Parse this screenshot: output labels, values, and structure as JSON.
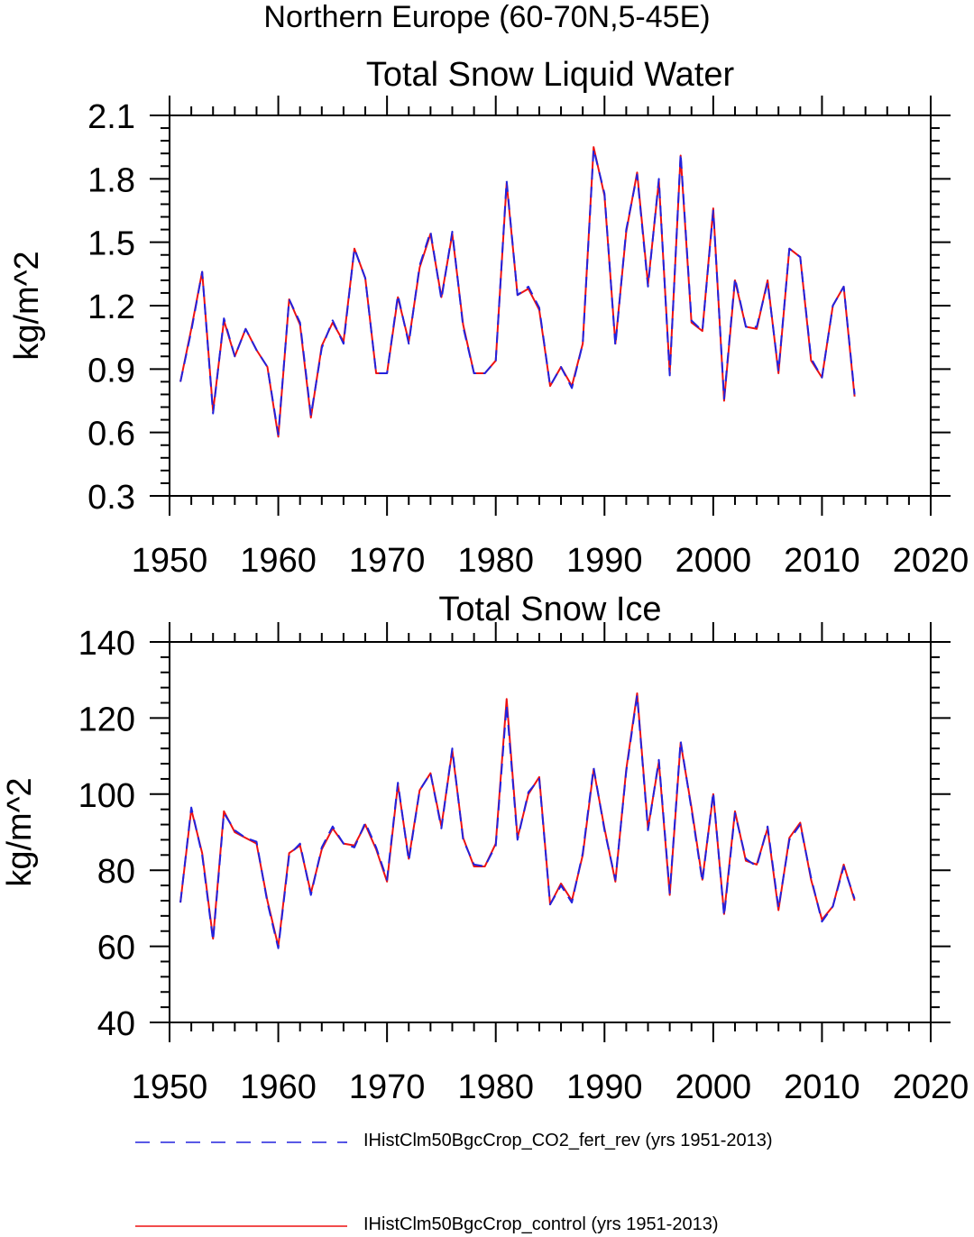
{
  "figure": {
    "suptitle": "Northern Europe (60-70N,5-45E)"
  },
  "colors": {
    "co2_fert_rev": "#2222dd",
    "control": "#ee1111",
    "axis": "#000000"
  },
  "legend": [
    {
      "label": "IHistClm50BgcCrop_CO2_fert_rev (yrs 1951-2013)",
      "color": "#2222dd",
      "style": "dashed"
    },
    {
      "label": "IHistClm50BgcCrop_control (yrs 1951-2013)",
      "color": "#ee1111",
      "style": "solid"
    }
  ],
  "chart_data": [
    {
      "type": "line",
      "title": "Total Snow Liquid Water",
      "xlabel": "",
      "ylabel": "kg/m^2",
      "xlim": [
        1950,
        2020
      ],
      "ylim": [
        0.3,
        2.1
      ],
      "xticks": [
        1950,
        1960,
        1970,
        1980,
        1990,
        2000,
        2010,
        2020
      ],
      "yticks": [
        "0.3",
        "0.6",
        "0.9",
        "1.2",
        "1.5",
        "1.8",
        "2.1"
      ],
      "x": [
        1951,
        1952,
        1953,
        1954,
        1955,
        1956,
        1957,
        1958,
        1959,
        1960,
        1961,
        1962,
        1963,
        1964,
        1965,
        1966,
        1967,
        1968,
        1969,
        1970,
        1971,
        1972,
        1973,
        1974,
        1975,
        1976,
        1977,
        1978,
        1979,
        1980,
        1981,
        1982,
        1983,
        1984,
        1985,
        1986,
        1987,
        1988,
        1989,
        1990,
        1991,
        1992,
        1993,
        1994,
        1995,
        1996,
        1997,
        1998,
        1999,
        2000,
        2001,
        2002,
        2003,
        2004,
        2005,
        2006,
        2007,
        2008,
        2009,
        2010,
        2011,
        2012,
        2013
      ],
      "series": [
        {
          "name": "IHistClm50BgcCrop_CO2_fert_rev (yrs 1951-2013)",
          "values": [
            0.84,
            1.08,
            1.36,
            0.69,
            1.14,
            0.96,
            1.09,
            0.99,
            0.91,
            0.59,
            1.23,
            1.12,
            0.68,
            1.0,
            1.13,
            1.02,
            1.47,
            1.33,
            0.88,
            0.88,
            1.25,
            1.02,
            1.39,
            1.55,
            1.23,
            1.55,
            1.1,
            0.88,
            0.88,
            0.94,
            1.79,
            1.25,
            1.29,
            1.19,
            0.82,
            0.91,
            0.81,
            1.02,
            1.94,
            1.73,
            1.01,
            1.56,
            1.82,
            1.29,
            1.8,
            0.87,
            1.92,
            1.13,
            1.08,
            1.65,
            0.76,
            1.33,
            1.1,
            1.1,
            1.31,
            0.89,
            1.47,
            1.43,
            0.95,
            0.86,
            1.2,
            1.29,
            0.78
          ]
        },
        {
          "name": "IHistClm50BgcCrop_control (yrs 1951-2013)",
          "values": [
            0.84,
            1.09,
            1.36,
            0.7,
            1.13,
            0.96,
            1.09,
            0.99,
            0.91,
            0.58,
            1.23,
            1.11,
            0.67,
            1.01,
            1.12,
            1.03,
            1.47,
            1.33,
            0.88,
            0.88,
            1.24,
            1.03,
            1.38,
            1.54,
            1.24,
            1.54,
            1.11,
            0.88,
            0.88,
            0.94,
            1.78,
            1.25,
            1.28,
            1.18,
            0.82,
            0.91,
            0.82,
            1.02,
            1.95,
            1.72,
            1.02,
            1.55,
            1.83,
            1.3,
            1.79,
            0.88,
            1.91,
            1.12,
            1.08,
            1.66,
            0.75,
            1.32,
            1.1,
            1.09,
            1.32,
            0.88,
            1.47,
            1.43,
            0.94,
            0.86,
            1.2,
            1.29,
            0.77
          ]
        }
      ]
    },
    {
      "type": "line",
      "title": "Total Snow Ice",
      "xlabel": "",
      "ylabel": "kg/m^2",
      "xlim": [
        1950,
        2020
      ],
      "ylim": [
        40,
        140
      ],
      "xticks": [
        1950,
        1960,
        1970,
        1980,
        1990,
        2000,
        2010,
        2020
      ],
      "yticks": [
        "40",
        "60",
        "80",
        "100",
        "120",
        "140"
      ],
      "x": [
        1951,
        1952,
        1953,
        1954,
        1955,
        1956,
        1957,
        1958,
        1959,
        1960,
        1961,
        1962,
        1963,
        1964,
        1965,
        1966,
        1967,
        1968,
        1969,
        1970,
        1971,
        1972,
        1973,
        1974,
        1975,
        1976,
        1977,
        1978,
        1979,
        1980,
        1981,
        1982,
        1983,
        1984,
        1985,
        1986,
        1987,
        1988,
        1989,
        1990,
        1991,
        1992,
        1993,
        1994,
        1995,
        1996,
        1997,
        1998,
        1999,
        2000,
        2001,
        2002,
        2003,
        2004,
        2005,
        2006,
        2007,
        2008,
        2009,
        2010,
        2011,
        2012,
        2013
      ],
      "series": [
        {
          "name": "IHistClm50BgcCrop_CO2_fert_rev (yrs 1951-2013)",
          "values": [
            71.5,
            96.5,
            84.0,
            61.5,
            95.0,
            90.5,
            88.5,
            87.5,
            71.5,
            59.5,
            84.0,
            87.0,
            73.5,
            86.0,
            91.5,
            87.0,
            86.0,
            92.5,
            86.0,
            77.5,
            103.0,
            82.5,
            101.0,
            105.5,
            91.0,
            112.0,
            88.0,
            81.5,
            81.0,
            86.5,
            123.5,
            88.0,
            100.5,
            104.0,
            71.0,
            76.0,
            71.5,
            84.5,
            107.0,
            90.5,
            77.5,
            106.0,
            126.0,
            90.5,
            109.0,
            74.0,
            114.0,
            96.0,
            77.0,
            100.5,
            68.0,
            95.0,
            83.0,
            81.0,
            91.5,
            70.0,
            88.0,
            92.0,
            78.0,
            66.5,
            70.5,
            81.0,
            72.5
          ]
        },
        {
          "name": "IHistClm50BgcCrop_control (yrs 1951-2013)",
          "values": [
            71.5,
            96.0,
            84.5,
            62.0,
            95.5,
            90.0,
            88.5,
            87.0,
            72.0,
            60.0,
            84.5,
            86.5,
            74.0,
            85.5,
            91.0,
            87.0,
            86.5,
            92.0,
            85.5,
            77.0,
            102.5,
            83.0,
            101.0,
            105.5,
            91.5,
            111.5,
            88.5,
            81.0,
            81.0,
            87.0,
            125.0,
            88.5,
            100.0,
            104.5,
            71.0,
            76.5,
            72.0,
            84.0,
            106.5,
            91.0,
            77.0,
            106.5,
            126.5,
            91.0,
            108.5,
            73.5,
            113.5,
            96.5,
            77.5,
            100.0,
            68.5,
            95.5,
            82.5,
            81.5,
            91.0,
            69.5,
            88.5,
            92.5,
            77.5,
            67.0,
            70.5,
            81.5,
            72.0
          ]
        }
      ]
    }
  ]
}
